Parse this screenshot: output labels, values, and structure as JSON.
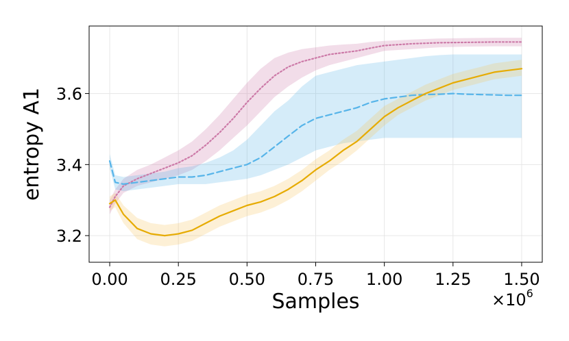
{
  "chart_data": {
    "type": "line",
    "xlabel": "Samples",
    "ylabel": "entropy A1",
    "x_multiplier": "×10",
    "x_multiplier_exp": "6",
    "xlim": [
      -0.075,
      1.575
    ],
    "ylim": [
      3.125,
      3.79
    ],
    "xticks": [
      0.0,
      0.25,
      0.5,
      0.75,
      1.0,
      1.25,
      1.5
    ],
    "xtick_labels": [
      "0.00",
      "0.25",
      "0.50",
      "0.75",
      "1.00",
      "1.25",
      "1.50"
    ],
    "yticks": [
      3.2,
      3.4,
      3.6
    ],
    "ytick_labels": [
      "3.2",
      "3.4",
      "3.6"
    ],
    "grid": true,
    "series": [
      {
        "style": "dotted",
        "color": "#cc79a7",
        "band_color": "#cc79a7",
        "x": [
          0.0,
          0.02,
          0.05,
          0.1,
          0.15,
          0.2,
          0.25,
          0.3,
          0.35,
          0.4,
          0.45,
          0.5,
          0.55,
          0.6,
          0.65,
          0.7,
          0.75,
          0.8,
          0.85,
          0.9,
          0.95,
          1.0,
          1.1,
          1.2,
          1.3,
          1.4,
          1.5
        ],
        "y": [
          3.28,
          3.31,
          3.34,
          3.36,
          3.375,
          3.39,
          3.405,
          3.425,
          3.455,
          3.49,
          3.53,
          3.575,
          3.615,
          3.65,
          3.675,
          3.69,
          3.7,
          3.71,
          3.715,
          3.72,
          3.728,
          3.735,
          3.74,
          3.743,
          3.744,
          3.745,
          3.745
        ],
        "low": [
          3.26,
          3.29,
          3.32,
          3.34,
          3.35,
          3.36,
          3.37,
          3.385,
          3.41,
          3.44,
          3.475,
          3.51,
          3.55,
          3.59,
          3.62,
          3.645,
          3.665,
          3.68,
          3.69,
          3.7,
          3.71,
          3.72,
          3.725,
          3.73,
          3.732,
          3.733,
          3.733
        ],
        "high": [
          3.3,
          3.33,
          3.36,
          3.385,
          3.4,
          3.42,
          3.44,
          3.465,
          3.5,
          3.54,
          3.585,
          3.63,
          3.67,
          3.7,
          3.715,
          3.725,
          3.73,
          3.735,
          3.738,
          3.74,
          3.745,
          3.748,
          3.752,
          3.755,
          3.756,
          3.757,
          3.757
        ]
      },
      {
        "style": "dashed",
        "color": "#56b4e9",
        "band_color": "#56b4e9",
        "x": [
          0.0,
          0.02,
          0.05,
          0.1,
          0.15,
          0.2,
          0.25,
          0.3,
          0.35,
          0.4,
          0.45,
          0.5,
          0.55,
          0.6,
          0.65,
          0.7,
          0.75,
          0.8,
          0.85,
          0.9,
          0.95,
          1.0,
          1.05,
          1.1,
          1.15,
          1.2,
          1.25,
          1.3,
          1.35,
          1.4,
          1.45,
          1.5
        ],
        "y": [
          3.41,
          3.35,
          3.345,
          3.35,
          3.355,
          3.36,
          3.365,
          3.365,
          3.37,
          3.38,
          3.39,
          3.4,
          3.42,
          3.45,
          3.48,
          3.51,
          3.53,
          3.54,
          3.55,
          3.56,
          3.575,
          3.585,
          3.59,
          3.595,
          3.597,
          3.598,
          3.6,
          3.598,
          3.597,
          3.596,
          3.595,
          3.595
        ],
        "low": [
          3.39,
          3.33,
          3.325,
          3.33,
          3.335,
          3.34,
          3.345,
          3.345,
          3.345,
          3.35,
          3.355,
          3.36,
          3.37,
          3.385,
          3.4,
          3.42,
          3.44,
          3.45,
          3.46,
          3.465,
          3.47,
          3.475,
          3.475,
          3.475,
          3.475,
          3.475,
          3.475,
          3.475,
          3.475,
          3.475,
          3.475,
          3.475
        ],
        "high": [
          3.43,
          3.37,
          3.365,
          3.37,
          3.375,
          3.38,
          3.39,
          3.395,
          3.405,
          3.42,
          3.44,
          3.47,
          3.51,
          3.55,
          3.58,
          3.62,
          3.65,
          3.66,
          3.67,
          3.68,
          3.685,
          3.69,
          3.695,
          3.7,
          3.705,
          3.708,
          3.71,
          3.71,
          3.71,
          3.71,
          3.71,
          3.71
        ]
      },
      {
        "style": "solid",
        "color": "#e6ab02",
        "band_color": "#f7c55b",
        "x": [
          0.0,
          0.02,
          0.05,
          0.1,
          0.15,
          0.2,
          0.25,
          0.3,
          0.35,
          0.4,
          0.45,
          0.5,
          0.55,
          0.6,
          0.65,
          0.7,
          0.75,
          0.8,
          0.85,
          0.9,
          0.95,
          1.0,
          1.05,
          1.1,
          1.15,
          1.2,
          1.25,
          1.3,
          1.35,
          1.4,
          1.45,
          1.5
        ],
        "y": [
          3.29,
          3.3,
          3.26,
          3.22,
          3.205,
          3.2,
          3.205,
          3.215,
          3.235,
          3.255,
          3.27,
          3.285,
          3.295,
          3.31,
          3.33,
          3.355,
          3.385,
          3.41,
          3.44,
          3.465,
          3.5,
          3.535,
          3.56,
          3.58,
          3.6,
          3.615,
          3.63,
          3.64,
          3.65,
          3.66,
          3.665,
          3.67
        ],
        "low": [
          3.27,
          3.28,
          3.235,
          3.19,
          3.175,
          3.17,
          3.175,
          3.185,
          3.205,
          3.225,
          3.24,
          3.255,
          3.265,
          3.28,
          3.3,
          3.325,
          3.355,
          3.385,
          3.41,
          3.44,
          3.475,
          3.51,
          3.54,
          3.56,
          3.58,
          3.595,
          3.61,
          3.62,
          3.63,
          3.64,
          3.645,
          3.65
        ],
        "high": [
          3.31,
          3.32,
          3.285,
          3.25,
          3.235,
          3.23,
          3.235,
          3.245,
          3.265,
          3.285,
          3.3,
          3.315,
          3.325,
          3.34,
          3.36,
          3.385,
          3.415,
          3.44,
          3.47,
          3.495,
          3.53,
          3.565,
          3.585,
          3.605,
          3.625,
          3.64,
          3.655,
          3.665,
          3.675,
          3.685,
          3.69,
          3.695
        ]
      }
    ]
  }
}
